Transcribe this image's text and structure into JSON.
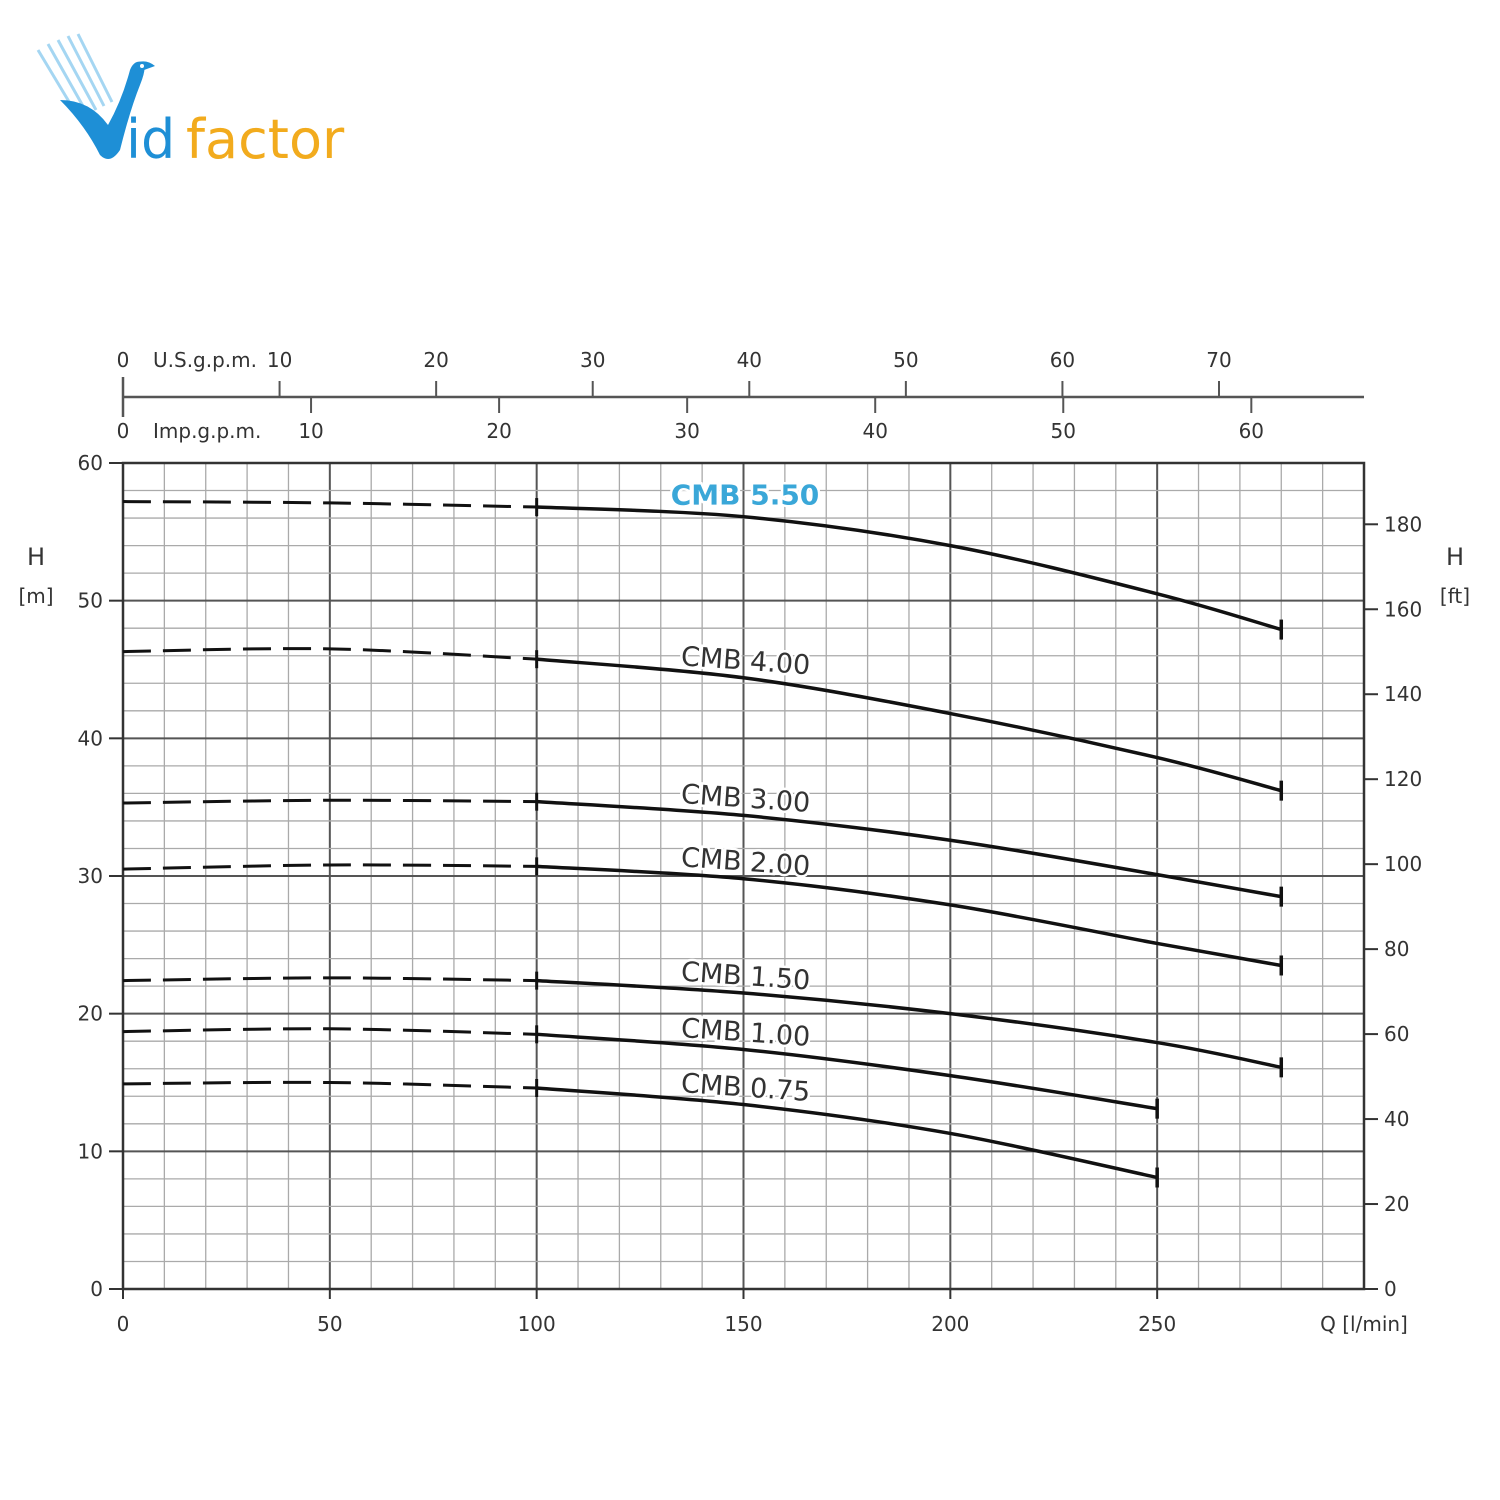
{
  "logo": {
    "text_part1": "id",
    "text_part2": "factor",
    "initial": "V",
    "colors": {
      "blue": "#1e8fd6",
      "orange": "#f2ab1d"
    }
  },
  "chart_data": {
    "type": "line",
    "title": "",
    "xlabel": "Q [l/min]",
    "ylabel_left": {
      "symbol": "H",
      "unit": "[m]"
    },
    "ylabel_right": {
      "symbol": "H",
      "unit": "[ft]"
    },
    "xlim": [
      0,
      300
    ],
    "ylim": [
      0,
      60
    ],
    "x_ticks": [
      0,
      50,
      100,
      150,
      200,
      250
    ],
    "y_ticks": [
      0,
      10,
      20,
      30,
      40,
      50,
      60
    ],
    "y_right_ticks": [
      0,
      20,
      40,
      60,
      80,
      100,
      120,
      140,
      160,
      180
    ],
    "top_axis_us": {
      "label": "U.S.g.p.m.",
      "ticks": [
        0,
        10,
        20,
        30,
        40,
        50,
        60,
        70
      ]
    },
    "top_axis_imp": {
      "label": "Imp.g.p.m.",
      "ticks": [
        0,
        10,
        20,
        30,
        40,
        50,
        60
      ]
    },
    "grid": true,
    "dashed_range": [
      0,
      100
    ],
    "highlight_color": "#3aa7d8",
    "series": [
      {
        "name": "CMB 5.50",
        "highlight": true,
        "x": [
          0,
          50,
          100,
          150,
          200,
          250,
          280
        ],
        "y": [
          57.2,
          57.1,
          56.8,
          56.1,
          54.0,
          50.5,
          47.9
        ]
      },
      {
        "name": "CMB 4.00",
        "x": [
          0,
          50,
          100,
          150,
          200,
          250,
          280
        ],
        "y": [
          46.3,
          46.5,
          45.75,
          44.4,
          41.8,
          38.6,
          36.2
        ]
      },
      {
        "name": "CMB 3.00",
        "x": [
          0,
          50,
          100,
          150,
          200,
          250,
          280
        ],
        "y": [
          35.3,
          35.5,
          35.4,
          34.4,
          32.6,
          30.1,
          28.5
        ]
      },
      {
        "name": "CMB 2.00",
        "x": [
          0,
          50,
          100,
          150,
          200,
          250,
          280
        ],
        "y": [
          30.5,
          30.8,
          30.7,
          29.8,
          27.9,
          25.1,
          23.5
        ]
      },
      {
        "name": "CMB 1.50",
        "x": [
          0,
          50,
          100,
          150,
          200,
          250,
          280
        ],
        "y": [
          22.4,
          22.6,
          22.4,
          21.5,
          20.0,
          17.9,
          16.1
        ]
      },
      {
        "name": "CMB 1.00",
        "x": [
          0,
          50,
          100,
          150,
          200,
          250
        ],
        "y": [
          18.7,
          18.9,
          18.5,
          17.4,
          15.5,
          13.1
        ]
      },
      {
        "name": "CMB 0.75",
        "x": [
          0,
          50,
          100,
          150,
          200,
          250
        ],
        "y": [
          14.9,
          15.0,
          14.6,
          13.4,
          11.3,
          8.1
        ]
      }
    ]
  }
}
